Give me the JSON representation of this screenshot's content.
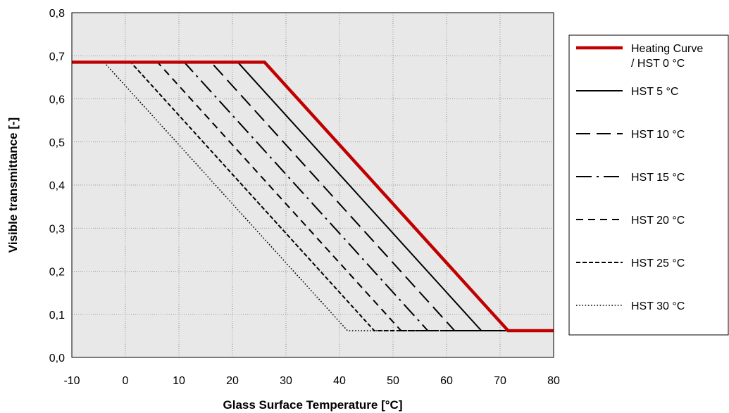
{
  "chart_data": {
    "type": "line",
    "xlabel": "Glass Surface Temperature [°C]",
    "ylabel": "Visible transmittance [-]",
    "xlim": [
      -10,
      80
    ],
    "ylim": [
      0,
      0.8
    ],
    "x_ticks": [
      -10,
      0,
      10,
      20,
      30,
      40,
      50,
      60,
      70,
      80
    ],
    "y_ticks": [
      0,
      0.1,
      0.2,
      0.3,
      0.4,
      0.5,
      0.6,
      0.7,
      0.8
    ],
    "x_tick_labels": [
      "-10",
      "0",
      "10",
      "20",
      "30",
      "40",
      "50",
      "60",
      "70",
      "80"
    ],
    "y_tick_labels": [
      "0,0",
      "0,1",
      "0,2",
      "0,3",
      "0,4",
      "0,5",
      "0,6",
      "0,7",
      "0,8"
    ],
    "grid": true,
    "legend_position": "right",
    "series": [
      {
        "name": "Heating Curve / HST 0 °C",
        "legend_lines": [
          "Heating Curve",
          "/ HST 0 °C"
        ],
        "color": "#c00000",
        "style": "solid-thick",
        "points": [
          [
            -10,
            0.685
          ],
          [
            26,
            0.685
          ],
          [
            71.5,
            0.062
          ],
          [
            80,
            0.062
          ]
        ]
      },
      {
        "name": "HST 5 °C",
        "legend_lines": [
          "HST 5 °C"
        ],
        "color": "#000000",
        "style": "solid",
        "points": [
          [
            -10,
            0.685
          ],
          [
            21,
            0.685
          ],
          [
            66.5,
            0.062
          ],
          [
            80,
            0.062
          ]
        ]
      },
      {
        "name": "HST 10 °C",
        "legend_lines": [
          "HST 10 °C"
        ],
        "color": "#000000",
        "style": "long-dash",
        "points": [
          [
            -10,
            0.685
          ],
          [
            16,
            0.685
          ],
          [
            61.5,
            0.062
          ],
          [
            80,
            0.062
          ]
        ]
      },
      {
        "name": "HST 15 °C",
        "legend_lines": [
          "HST 15 °C"
        ],
        "color": "#000000",
        "style": "dash-dot",
        "points": [
          [
            -10,
            0.685
          ],
          [
            11,
            0.685
          ],
          [
            56.5,
            0.062
          ],
          [
            80,
            0.062
          ]
        ]
      },
      {
        "name": "HST 20 °C",
        "legend_lines": [
          "HST 20 °C"
        ],
        "color": "#000000",
        "style": "dash",
        "points": [
          [
            -10,
            0.685
          ],
          [
            6,
            0.685
          ],
          [
            51.5,
            0.062
          ],
          [
            80,
            0.062
          ]
        ]
      },
      {
        "name": "HST 25 °C",
        "legend_lines": [
          "HST 25 °C"
        ],
        "color": "#000000",
        "style": "short-dash",
        "points": [
          [
            -10,
            0.685
          ],
          [
            1,
            0.685
          ],
          [
            46.5,
            0.062
          ],
          [
            80,
            0.062
          ]
        ]
      },
      {
        "name": "HST 30 °C",
        "legend_lines": [
          "HST 30 °C"
        ],
        "color": "#000000",
        "style": "dotted",
        "points": [
          [
            -10,
            0.685
          ],
          [
            -4,
            0.685
          ],
          [
            41.5,
            0.062
          ],
          [
            80,
            0.062
          ]
        ]
      }
    ]
  }
}
